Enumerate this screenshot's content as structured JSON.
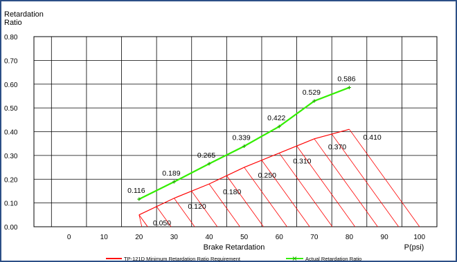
{
  "chart_data": {
    "type": "line",
    "xlabel": "Brake Retardation",
    "xunit_label": "P(psi)",
    "ylabel_line1": "Retardation",
    "ylabel_line2": "Ratio",
    "xlim": [
      -10,
      105
    ],
    "ylim": [
      0,
      0.8
    ],
    "x_ticks": [
      "0",
      "10",
      "20",
      "30",
      "40",
      "50",
      "60",
      "70",
      "80",
      "90",
      "100"
    ],
    "y_ticks": [
      "0.00",
      "0.10",
      "0.20",
      "0.30",
      "0.40",
      "0.50",
      "0.60",
      "0.70",
      "0.80"
    ],
    "grid": true,
    "legend_position": "bottom",
    "series": [
      {
        "name": "TP-121D Minimum Retardation Ratio Requirement",
        "color": "#ff0000",
        "x": [
          20,
          30,
          40,
          50,
          60,
          70,
          80
        ],
        "y": [
          0.05,
          0.12,
          0.18,
          0.25,
          0.31,
          0.37,
          0.41
        ],
        "labels": [
          "0.050",
          "0.120",
          "0.180",
          "0.250",
          "0.310",
          "0.370",
          "0.410"
        ],
        "hatch_to_zero": true
      },
      {
        "name": "Actual Retardation Ratio",
        "color": "#33ee00",
        "x": [
          20,
          30,
          40,
          50,
          60,
          70,
          80
        ],
        "y": [
          0.116,
          0.189,
          0.265,
          0.339,
          0.422,
          0.529,
          0.586
        ],
        "labels": [
          "0.116",
          "0.189",
          "0.265",
          "0.339",
          "0.422",
          "0.529",
          "0.586"
        ],
        "markers": true
      }
    ]
  }
}
